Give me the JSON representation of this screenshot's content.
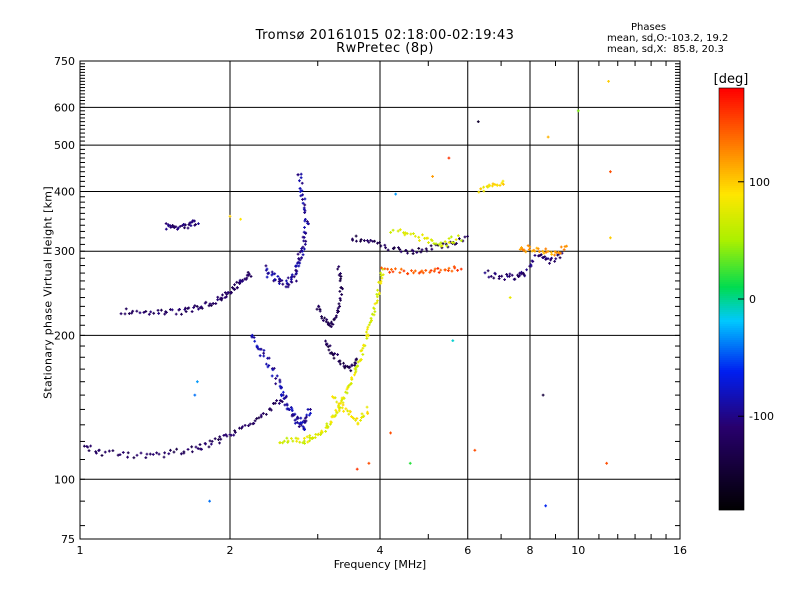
{
  "chart_data": {
    "type": "scatter",
    "title": "Tromsø 20161015 02:18:00-02:19:43",
    "subtitle": "RwPretec (8p)",
    "xlabel": "Frequency [MHz]",
    "ylabel": "Stationary phase Virtual Height [km]",
    "x_scale": "log",
    "y_scale": "log",
    "xlim": [
      1,
      16
    ],
    "ylim": [
      75,
      750
    ],
    "x_ticks": [
      1,
      2,
      4,
      6,
      8,
      10,
      16
    ],
    "x_tick_labels": [
      "1",
      "2",
      "4",
      "6",
      "8",
      "10",
      "16"
    ],
    "y_ticks": [
      75,
      100,
      200,
      300,
      400,
      500,
      600,
      750
    ],
    "y_tick_labels": [
      "75",
      "100",
      "200",
      "300",
      "400",
      "500",
      "600",
      "750"
    ],
    "grid": true,
    "phases_legend": {
      "title": "Phases",
      "line_o": "mean, sd,O:-103.2, 19.2",
      "line_x": "mean, sd,X:  85.8, 20.3"
    },
    "colorbar": {
      "label": "[deg]",
      "range": [
        -180,
        180
      ],
      "ticks": [
        100,
        0,
        -100
      ],
      "tick_labels": [
        "100",
        "0",
        "-100"
      ]
    },
    "traces": [
      {
        "phase": -120,
        "density": 10,
        "spread": 0.013,
        "points": [
          [
            1.0,
            118
          ],
          [
            1.1,
            114
          ],
          [
            1.3,
            112
          ],
          [
            1.5,
            113
          ],
          [
            1.7,
            116
          ],
          [
            1.85,
            119
          ],
          [
            2.0,
            124
          ],
          [
            2.2,
            131
          ],
          [
            2.4,
            140
          ],
          [
            2.55,
            148
          ]
        ]
      },
      {
        "phase": -115,
        "density": 12,
        "spread": 0.013,
        "points": [
          [
            1.2,
            225
          ],
          [
            1.4,
            224
          ],
          [
            1.6,
            224
          ],
          [
            1.75,
            229
          ],
          [
            1.9,
            238
          ],
          [
            2.0,
            247
          ],
          [
            2.1,
            258
          ],
          [
            2.2,
            270
          ]
        ]
      },
      {
        "phase": -110,
        "density": 10,
        "spread": 0.012,
        "points": [
          [
            1.48,
            338
          ],
          [
            1.55,
            337
          ],
          [
            1.65,
            340
          ],
          [
            1.72,
            345
          ]
        ]
      },
      {
        "phase": -95,
        "density": 12,
        "spread": 0.018,
        "points": [
          [
            2.35,
            275
          ],
          [
            2.45,
            262
          ],
          [
            2.6,
            255
          ],
          [
            2.7,
            265
          ],
          [
            2.75,
            285
          ],
          [
            2.8,
            305
          ],
          [
            2.85,
            340
          ],
          [
            2.8,
            390
          ],
          [
            2.75,
            440
          ]
        ]
      },
      {
        "phase": -90,
        "density": 14,
        "spread": 0.02,
        "points": [
          [
            2.2,
            200
          ],
          [
            2.35,
            180
          ],
          [
            2.5,
            160
          ],
          [
            2.6,
            145
          ],
          [
            2.7,
            135
          ],
          [
            2.8,
            128
          ],
          [
            2.9,
            140
          ]
        ]
      },
      {
        "phase": -125,
        "density": 9,
        "spread": 0.012,
        "points": [
          [
            3.0,
            230
          ],
          [
            3.1,
            215
          ],
          [
            3.2,
            210
          ],
          [
            3.3,
            225
          ],
          [
            3.35,
            250
          ],
          [
            3.3,
            280
          ]
        ]
      },
      {
        "phase": -130,
        "density": 9,
        "spread": 0.012,
        "points": [
          [
            3.1,
            195
          ],
          [
            3.2,
            185
          ],
          [
            3.35,
            175
          ],
          [
            3.5,
            170
          ],
          [
            3.6,
            180
          ]
        ]
      },
      {
        "phase": 75,
        "density": 14,
        "spread": 0.013,
        "points": [
          [
            2.5,
            121
          ],
          [
            2.8,
            120
          ],
          [
            3.0,
            124
          ],
          [
            3.2,
            132
          ],
          [
            3.35,
            145
          ],
          [
            3.5,
            160
          ],
          [
            3.65,
            180
          ],
          [
            3.8,
            205
          ],
          [
            3.95,
            240
          ],
          [
            4.05,
            275
          ]
        ]
      },
      {
        "phase": 85,
        "density": 10,
        "spread": 0.014,
        "points": [
          [
            3.2,
            150
          ],
          [
            3.4,
            140
          ],
          [
            3.6,
            132
          ],
          [
            3.8,
            140
          ]
        ]
      },
      {
        "phase": -125,
        "density": 9,
        "spread": 0.012,
        "points": [
          [
            3.5,
            320
          ],
          [
            3.8,
            315
          ],
          [
            4.2,
            305
          ],
          [
            4.6,
            300
          ],
          [
            5.0,
            305
          ],
          [
            5.5,
            310
          ],
          [
            6.0,
            320
          ]
        ]
      },
      {
        "phase": 150,
        "density": 12,
        "spread": 0.01,
        "points": [
          [
            4.0,
            275
          ],
          [
            4.6,
            272
          ],
          [
            5.2,
            273
          ],
          [
            5.8,
            276
          ]
        ]
      },
      {
        "phase": 70,
        "density": 12,
        "spread": 0.015,
        "points": [
          [
            4.2,
            330
          ],
          [
            4.8,
            320
          ],
          [
            5.3,
            310
          ],
          [
            5.8,
            320
          ]
        ]
      },
      {
        "phase": 90,
        "density": 9,
        "spread": 0.012,
        "points": [
          [
            6.3,
            400
          ],
          [
            6.7,
            410
          ],
          [
            7.1,
            420
          ]
        ]
      },
      {
        "phase": -110,
        "density": 9,
        "spread": 0.012,
        "points": [
          [
            6.5,
            270
          ],
          [
            7.0,
            265
          ],
          [
            7.5,
            265
          ],
          [
            7.8,
            270
          ],
          [
            8.3,
            295
          ],
          [
            8.7,
            285
          ],
          [
            9.3,
            295
          ]
        ]
      },
      {
        "phase": 120,
        "density": 8,
        "spread": 0.012,
        "points": [
          [
            7.6,
            300
          ],
          [
            8.0,
            305
          ],
          [
            8.5,
            300
          ],
          [
            9.0,
            298
          ],
          [
            9.5,
            305
          ]
        ]
      }
    ],
    "scatter_points": [
      [
        1.82,
        90,
        -40
      ],
      [
        11.4,
        108,
        150
      ],
      [
        10.0,
        590,
        40
      ],
      [
        8.7,
        520,
        110
      ],
      [
        11.5,
        680,
        100
      ],
      [
        8.6,
        88,
        -60
      ],
      [
        8.5,
        150,
        -140
      ],
      [
        6.3,
        560,
        -150
      ],
      [
        5.5,
        470,
        160
      ],
      [
        4.2,
        125,
        150
      ],
      [
        4.6,
        108,
        20
      ],
      [
        3.8,
        108,
        150
      ],
      [
        3.6,
        105,
        160
      ],
      [
        5.6,
        195,
        -10
      ],
      [
        6.2,
        115,
        150
      ],
      [
        1.7,
        150,
        -40
      ],
      [
        1.72,
        160,
        -30
      ],
      [
        2.1,
        350,
        90
      ],
      [
        2.0,
        355,
        100
      ],
      [
        11.6,
        440,
        150
      ],
      [
        11.6,
        320,
        100
      ],
      [
        7.3,
        240,
        80
      ],
      [
        4.3,
        395,
        -30
      ],
      [
        5.1,
        430,
        120
      ]
    ]
  }
}
